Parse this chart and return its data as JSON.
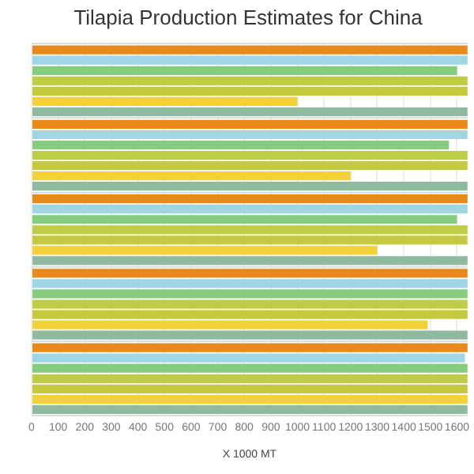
{
  "chart_data": {
    "type": "bar",
    "orientation": "horizontal",
    "title": "Tilapia Production Estimates for China",
    "xlabel": "X 1000 MT",
    "categories": [
      null,
      null,
      null,
      null,
      null
    ],
    "series": [
      {
        "color": "#e8891c",
        "values": [
          1640,
          1640,
          1640,
          1640,
          1640
        ]
      },
      {
        "color": "#9ed6e3",
        "values": [
          1640,
          1640,
          1640,
          1640,
          1630
        ]
      },
      {
        "color": "#86cc7e",
        "values": [
          1600,
          1570,
          1600,
          1640,
          1640
        ]
      },
      {
        "color": "#bfcc46",
        "values": [
          1640,
          1640,
          1640,
          1640,
          1640
        ]
      },
      {
        "color": "#c5c93e",
        "values": [
          1640,
          1640,
          1640,
          1640,
          1640
        ]
      },
      {
        "color": "#f2d13c",
        "values": [
          1000,
          1200,
          1300,
          1490,
          1640
        ]
      },
      {
        "color": "#8fbaa0",
        "values": [
          1640,
          1640,
          1640,
          1640,
          1640
        ]
      }
    ],
    "xlim": [
      0,
      1640
    ],
    "xticks": [
      0,
      100,
      200,
      300,
      400,
      500,
      600,
      700,
      800,
      900,
      1000,
      1100,
      1200,
      1300,
      1400,
      1500,
      1600
    ],
    "grid": "x",
    "legend": false
  }
}
